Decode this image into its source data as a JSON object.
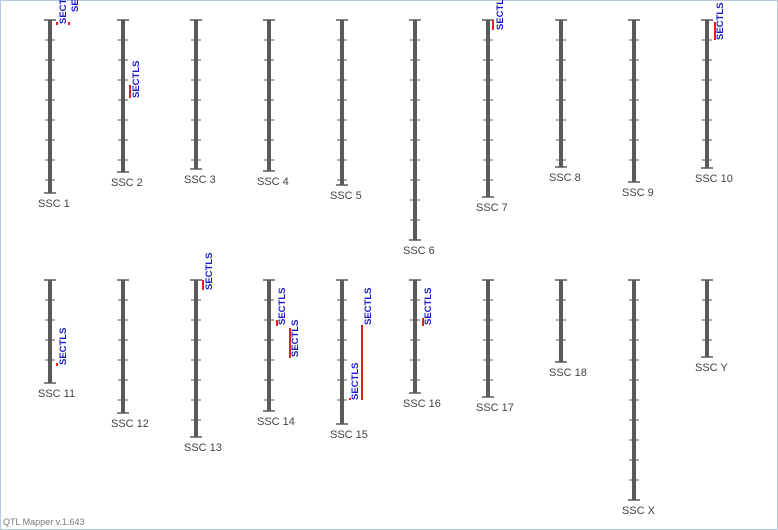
{
  "chromosomes": [
    {
      "label": "SSC 1"
    },
    {
      "label": "SSC 2"
    },
    {
      "label": "SSC 3"
    },
    {
      "label": "SSC 4"
    },
    {
      "label": "SSC 5"
    },
    {
      "label": "SSC 6"
    },
    {
      "label": "SSC 7"
    },
    {
      "label": "SSC 8"
    },
    {
      "label": "SSC 9"
    },
    {
      "label": "SSC 10"
    },
    {
      "label": "SSC 11"
    },
    {
      "label": "SSC 12"
    },
    {
      "label": "SSC 13"
    },
    {
      "label": "SSC 14"
    },
    {
      "label": "SSC 15"
    },
    {
      "label": "SSC 16"
    },
    {
      "label": "SSC 17"
    },
    {
      "label": "SSC 18"
    },
    {
      "label": "SSC X"
    },
    {
      "label": "SSC Y"
    }
  ],
  "qtls": [
    {
      "label": "SECTLS"
    },
    {
      "label": "SECTLS"
    },
    {
      "label": "SECTLS"
    },
    {
      "label": "SECTLS"
    },
    {
      "label": "SECTLS"
    },
    {
      "label": "SECTLS"
    },
    {
      "label": "SECTLS"
    },
    {
      "label": "SECTLS"
    },
    {
      "label": "SECTLS"
    },
    {
      "label": "SECTLS"
    },
    {
      "label": "SECTLS"
    },
    {
      "label": "SECTLS"
    }
  ],
  "footer": "QTL Mapper v.1.643"
}
